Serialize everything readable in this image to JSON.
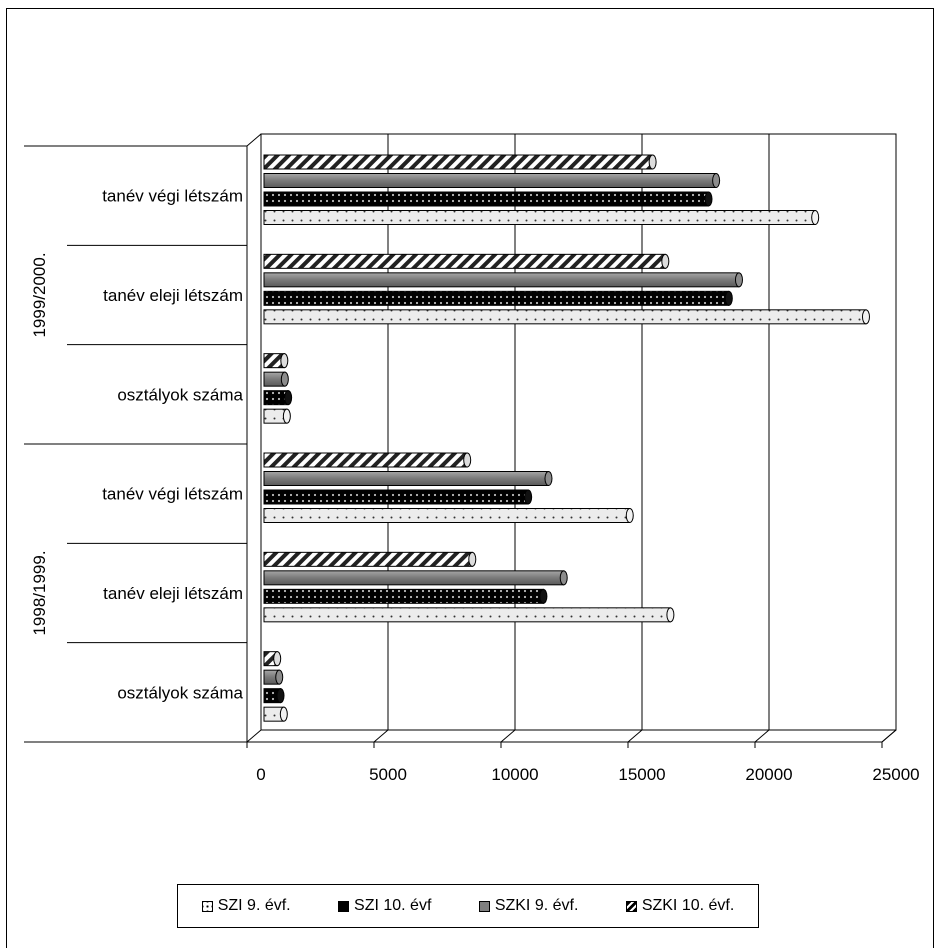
{
  "chart_data": {
    "type": "bar",
    "orientation": "horizontal",
    "groups": [
      {
        "label": "1999/2000.",
        "categories": [
          "tanév végi létszám",
          "tanév eleji létszám",
          "osztályok száma"
        ]
      },
      {
        "label": "1998/1999.",
        "categories": [
          "tanév végi létszám",
          "tanév eleji létszám",
          "osztályok száma"
        ]
      }
    ],
    "series": [
      {
        "name": "SZI 9. évf.",
        "values": [
          21700,
          23700,
          900,
          14400,
          16000,
          780
        ],
        "color": "#d9d9d9",
        "pattern": "dots-light"
      },
      {
        "name": "SZI 10. évf",
        "values": [
          17500,
          18300,
          950,
          10400,
          11000,
          650
        ],
        "color": "#111111",
        "pattern": "dots-dark"
      },
      {
        "name": "SZKI 9. évf.",
        "values": [
          17800,
          18700,
          820,
          11200,
          11800,
          600
        ],
        "color": "#7f7f7f",
        "pattern": "solid"
      },
      {
        "name": "SZKI 10. évf.",
        "values": [
          15300,
          15800,
          800,
          8000,
          8200,
          520
        ],
        "color": "#ffffff",
        "pattern": "hatch"
      }
    ],
    "xlim": [
      0,
      25000
    ],
    "xticks": [
      "0",
      "5000",
      "10000",
      "15000",
      "20000",
      "25000"
    ],
    "grid": true,
    "legend": "bottom"
  }
}
